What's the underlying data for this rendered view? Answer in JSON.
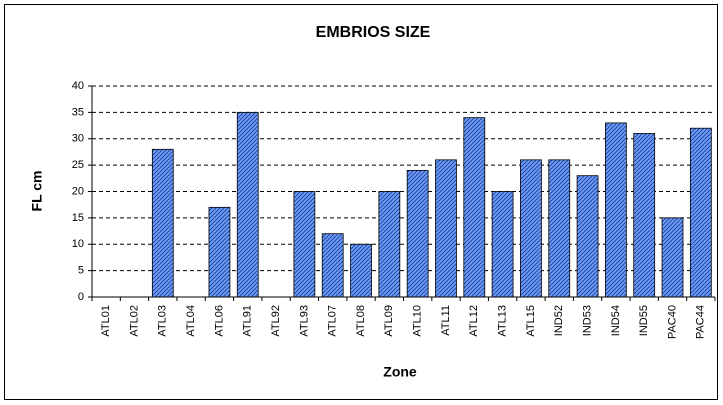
{
  "chart_data": {
    "type": "bar",
    "title": "EMBRIOS SIZE",
    "x_label": "Zone",
    "y_label": "FL cm",
    "categories": [
      "ATL01",
      "ATL02",
      "ATL03",
      "ATL04",
      "ATL06",
      "ATL91",
      "ATL92",
      "ATL93",
      "ATL07",
      "ATL08",
      "ATL09",
      "ATL10",
      "ATL11",
      "ATL12",
      "ATL13",
      "ATL15",
      "IND52",
      "IND53",
      "IND54",
      "IND55",
      "PAC40",
      "PAC44"
    ],
    "values": [
      0,
      0,
      28,
      0,
      17,
      35,
      0,
      20,
      12,
      10,
      20,
      24,
      26,
      34,
      20,
      26,
      26,
      23,
      33,
      31,
      15,
      32
    ],
    "color": "#6f9cf4",
    "ylim": [
      0,
      40
    ],
    "yticks": [
      0,
      5,
      10,
      15,
      20,
      25,
      30,
      35,
      40
    ],
    "grid": true
  }
}
